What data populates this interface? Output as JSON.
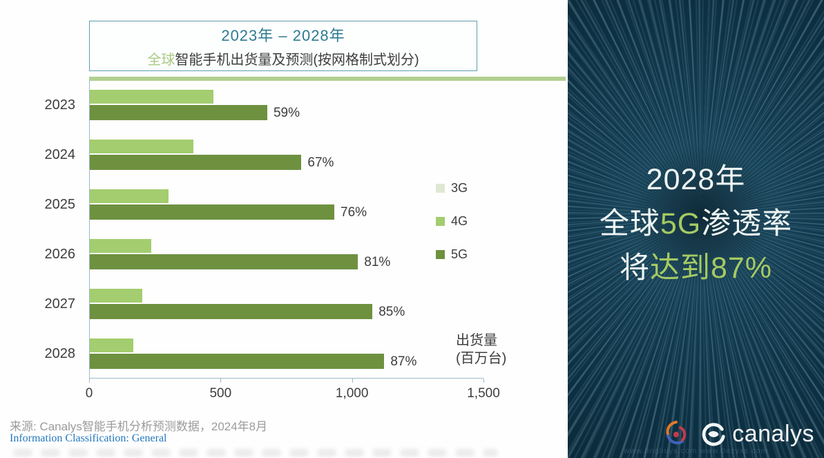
{
  "title": {
    "line1": "2023年 – 2028年",
    "line2_highlight": "全球",
    "line2_rest": "智能手机出货量及预测(按网格制式划分)"
  },
  "chart_data": {
    "type": "bar",
    "orientation": "horizontal",
    "title": "2023年–2028年 全球智能手机出货量及预测(按网格制式划分)",
    "xlabel": "出货量(百万台)",
    "xlim": [
      0,
      1500
    ],
    "x_tick_values": [
      0,
      500,
      1000,
      1500
    ],
    "x_tick_labels": [
      "0",
      "500",
      "1,000",
      "1,500"
    ],
    "grid": false,
    "legend_position": "right",
    "categories": [
      "2023",
      "2024",
      "2025",
      "2026",
      "2027",
      "2028"
    ],
    "series": [
      {
        "name": "3G",
        "color": "#dfe9d2",
        "values": [
          0,
          0,
          0,
          0,
          0,
          0
        ]
      },
      {
        "name": "4G",
        "color": "#a3cd6e",
        "values": [
          470,
          395,
          300,
          235,
          200,
          165
        ]
      },
      {
        "name": "5G",
        "color": "#6e9140",
        "values": [
          675,
          805,
          930,
          1020,
          1075,
          1120
        ],
        "labels": [
          "59%",
          "67%",
          "76%",
          "81%",
          "85%",
          "87%"
        ]
      }
    ],
    "axis_unit_line1": "出货量",
    "axis_unit_line2": "(百万台)"
  },
  "footer": {
    "source": "来源: Canalys智能手机分析预测数据，2024年8月",
    "classification": "Information Classification: General"
  },
  "panel": {
    "headline_line1": "2028年",
    "headline_line2a": "全球",
    "headline_line2b": "5G",
    "headline_line2c": "渗透率",
    "headline_line3a": "将",
    "headline_line3b": "达到87%",
    "logo_text": "canalys",
    "watermark": "www.lingliuyx.com    www.0ezyxs.com"
  },
  "colors": {
    "accent_teal": "#2e7b90",
    "green_4g": "#a3cd6e",
    "green_5g": "#6e9140",
    "pale_3g": "#dfe9d2",
    "panel_bg": "#0d3144",
    "panel_green": "#a5ca62"
  }
}
